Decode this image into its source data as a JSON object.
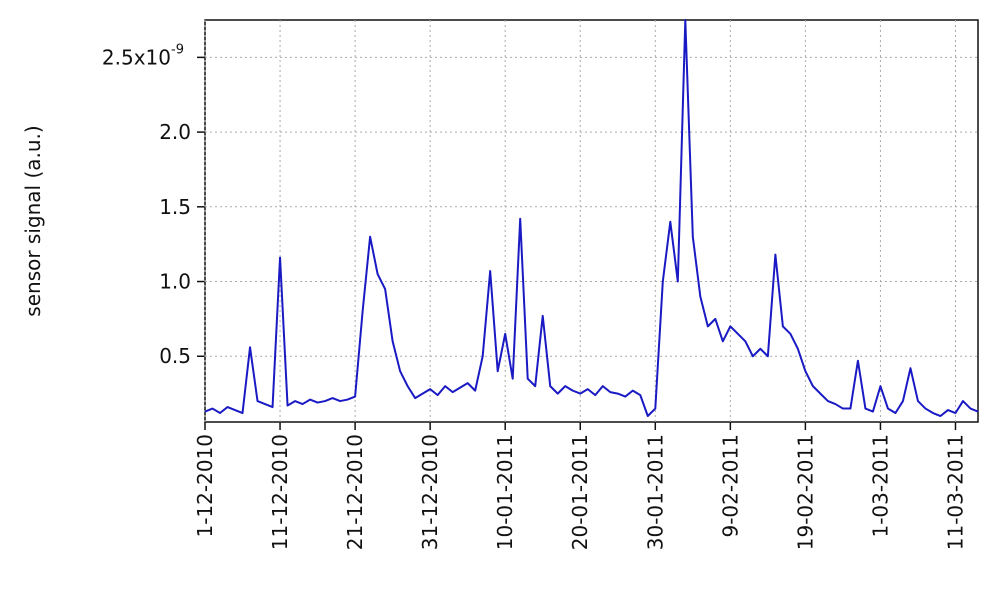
{
  "chart_data": {
    "type": "line",
    "ylabel": "sensor signal (a.u.)",
    "x": [
      "1-12-2010",
      "2-12-2010",
      "3-12-2010",
      "4-12-2010",
      "5-12-2010",
      "6-12-2010",
      "7-12-2010",
      "8-12-2010",
      "9-12-2010",
      "10-12-2010",
      "11-12-2010",
      "12-12-2010",
      "13-12-2010",
      "14-12-2010",
      "15-12-2010",
      "16-12-2010",
      "17-12-2010",
      "18-12-2010",
      "19-12-2010",
      "20-12-2010",
      "21-12-2010",
      "22-12-2010",
      "23-12-2010",
      "24-12-2010",
      "25-12-2010",
      "26-12-2010",
      "27-12-2010",
      "28-12-2010",
      "29-12-2010",
      "30-12-2010",
      "31-12-2010",
      "1-01-2011",
      "2-01-2011",
      "3-01-2011",
      "4-01-2011",
      "5-01-2011",
      "6-01-2011",
      "7-01-2011",
      "8-01-2011",
      "9-01-2011",
      "10-01-2011",
      "11-01-2011",
      "12-01-2011",
      "13-01-2011",
      "14-01-2011",
      "15-01-2011",
      "16-01-2011",
      "17-01-2011",
      "18-01-2011",
      "19-01-2011",
      "20-01-2011",
      "21-01-2011",
      "22-01-2011",
      "23-01-2011",
      "24-01-2011",
      "25-01-2011",
      "26-01-2011",
      "27-01-2011",
      "28-01-2011",
      "29-01-2011",
      "30-01-2011",
      "31-01-2011",
      "1-02-2011",
      "2-02-2011",
      "3-02-2011",
      "4-02-2011",
      "5-02-2011",
      "6-02-2011",
      "7-02-2011",
      "8-02-2011",
      "9-02-2011",
      "10-02-2011",
      "11-02-2011",
      "12-02-2011",
      "13-02-2011",
      "14-02-2011",
      "15-02-2011",
      "16-02-2011",
      "17-02-2011",
      "18-02-2011",
      "19-02-2011",
      "20-02-2011",
      "21-02-2011",
      "22-02-2011",
      "23-02-2011",
      "24-02-2011",
      "25-02-2011",
      "26-02-2011",
      "27-02-2011",
      "28-02-2011",
      "1-03-2011",
      "2-03-2011",
      "3-03-2011",
      "4-03-2011",
      "5-03-2011",
      "6-03-2011",
      "7-03-2011",
      "8-03-2011",
      "9-03-2011",
      "10-03-2011",
      "11-03-2011",
      "12-03-2011",
      "13-03-2011",
      "14-03-2011"
    ],
    "series": [
      {
        "color": "#1a1ac4",
        "values": [
          0.13,
          0.15,
          0.12,
          0.16,
          0.14,
          0.12,
          0.56,
          0.2,
          0.18,
          0.16,
          1.16,
          0.17,
          0.2,
          0.18,
          0.21,
          0.19,
          0.2,
          0.22,
          0.2,
          0.21,
          0.23,
          0.8,
          1.3,
          1.05,
          0.95,
          0.6,
          0.4,
          0.3,
          0.22,
          0.25,
          0.28,
          0.24,
          0.3,
          0.26,
          0.29,
          0.32,
          0.27,
          0.5,
          1.07,
          0.4,
          0.65,
          0.35,
          1.42,
          0.35,
          0.3,
          0.77,
          0.3,
          0.25,
          0.3,
          0.27,
          0.25,
          0.28,
          0.24,
          0.3,
          0.26,
          0.25,
          0.23,
          0.27,
          0.24,
          0.1,
          0.15,
          1.0,
          1.4,
          1.0,
          2.75,
          1.3,
          0.9,
          0.7,
          0.75,
          0.6,
          0.7,
          0.65,
          0.6,
          0.5,
          0.55,
          0.5,
          1.18,
          0.7,
          0.65,
          0.55,
          0.4,
          0.3,
          0.25,
          0.2,
          0.18,
          0.15,
          0.15,
          0.47,
          0.15,
          0.13,
          0.3,
          0.15,
          0.12,
          0.2,
          0.42,
          0.2,
          0.15,
          0.12,
          0.1,
          0.14,
          0.12,
          0.2,
          0.15,
          0.13
        ]
      }
    ],
    "xlim": [
      "1-12-2010",
      "14-03-2011"
    ],
    "xticks": [
      "1-12-2010",
      "11-12-2010",
      "21-12-2010",
      "31-12-2010",
      "10-01-2011",
      "20-01-2011",
      "30-01-2011",
      "9-02-2011",
      "19-02-2011",
      "1-03-2011",
      "11-03-2011"
    ],
    "ylim": [
      0.06,
      2.75
    ],
    "yticks": [
      0.5,
      {
        "value": 1,
        "label": "1.0"
      },
      1.5,
      {
        "value": 2,
        "label": "2.0"
      },
      {
        "value": 2.5,
        "label": "2.5x10"
      }
    ],
    "ytick_exponent": "-9",
    "grid": true
  }
}
